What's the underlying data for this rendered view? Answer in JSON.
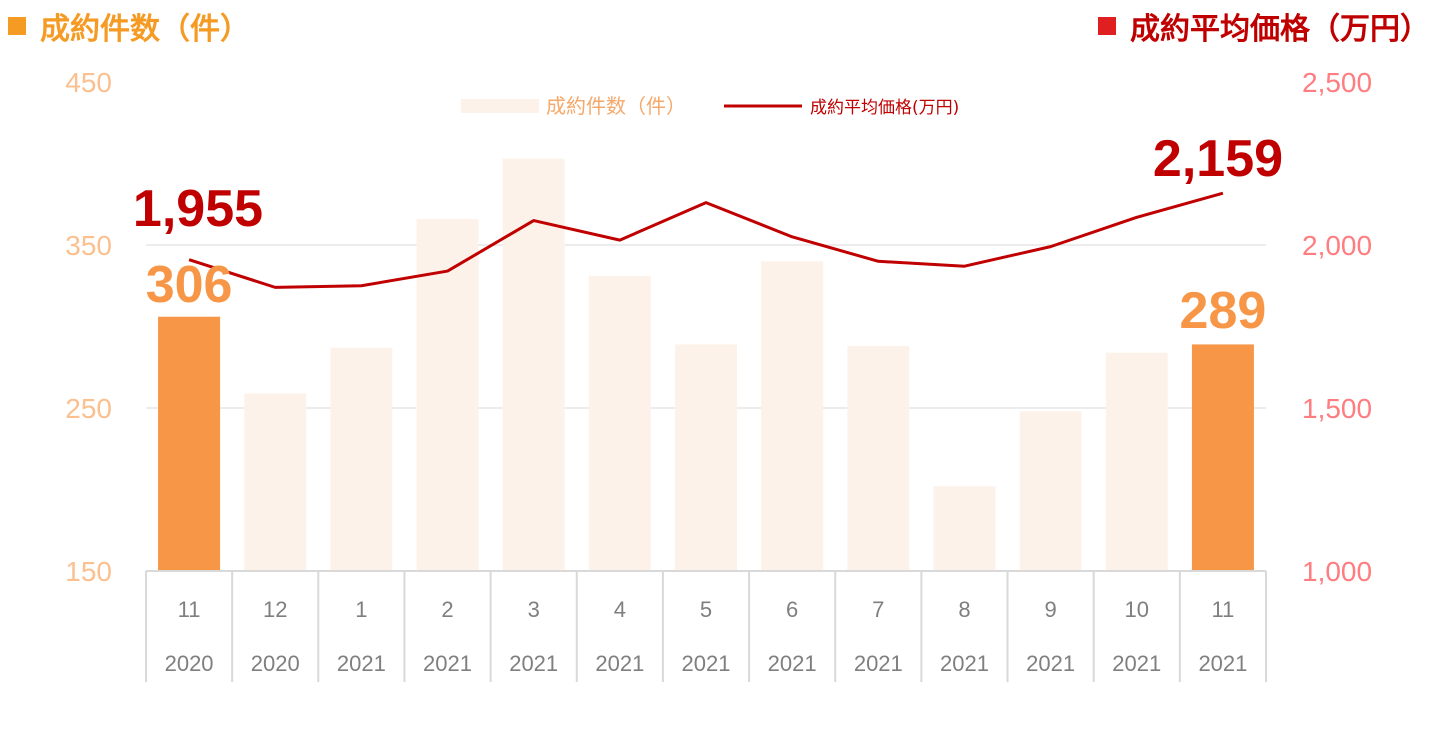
{
  "header": {
    "left_title": "成約件数（件）",
    "right_title": "成約平均価格（万円）"
  },
  "colors": {
    "bar_highlight": "#f79646",
    "bar_muted": "#fdf2e9",
    "line": "#c00000",
    "left_axis": "#fac090",
    "right_axis": "#ff7c80",
    "grid": "#e6e6e6",
    "axis_text": "#7f7f7f"
  },
  "chart_data": {
    "type": "bar+line",
    "categories": [
      {
        "month": "11",
        "year": "2020"
      },
      {
        "month": "12",
        "year": "2020"
      },
      {
        "month": "1",
        "year": "2021"
      },
      {
        "month": "2",
        "year": "2021"
      },
      {
        "month": "3",
        "year": "2021"
      },
      {
        "month": "4",
        "year": "2021"
      },
      {
        "month": "5",
        "year": "2021"
      },
      {
        "month": "6",
        "year": "2021"
      },
      {
        "month": "7",
        "year": "2021"
      },
      {
        "month": "8",
        "year": "2021"
      },
      {
        "month": "9",
        "year": "2021"
      },
      {
        "month": "10",
        "year": "2021"
      },
      {
        "month": "11",
        "year": "2021"
      }
    ],
    "series": [
      {
        "name": "成約件数（件）",
        "type": "bar",
        "axis": "left",
        "values": [
          306,
          259,
          287,
          366,
          403,
          331,
          289,
          340,
          288,
          202,
          248,
          284,
          289
        ],
        "highlight": [
          true,
          false,
          false,
          false,
          false,
          false,
          false,
          false,
          false,
          false,
          false,
          false,
          true
        ]
      },
      {
        "name": "成約平均価格(万円)",
        "type": "line",
        "axis": "right",
        "values": [
          1955,
          1870,
          1875,
          1920,
          2075,
          2015,
          2130,
          2025,
          1950,
          1935,
          1995,
          2085,
          2159
        ]
      }
    ],
    "left_axis": {
      "min": 150,
      "max": 450,
      "ticks": [
        "450",
        "350",
        "250",
        "150"
      ],
      "tick_values": [
        450,
        350,
        250,
        150
      ]
    },
    "right_axis": {
      "min": 1000,
      "max": 2500,
      "ticks": [
        "2,500",
        "2,000",
        "1,500",
        "1,000"
      ],
      "tick_values": [
        2500,
        2000,
        1500,
        1000
      ]
    },
    "annotations": {
      "bar_first": "306",
      "bar_last": "289",
      "line_first": "1,955",
      "line_last": "2,159"
    },
    "legend": {
      "bar_label": "成約件数（件）",
      "line_label": "成約平均価格(万円)",
      "position": "top-center"
    },
    "grid": true
  }
}
